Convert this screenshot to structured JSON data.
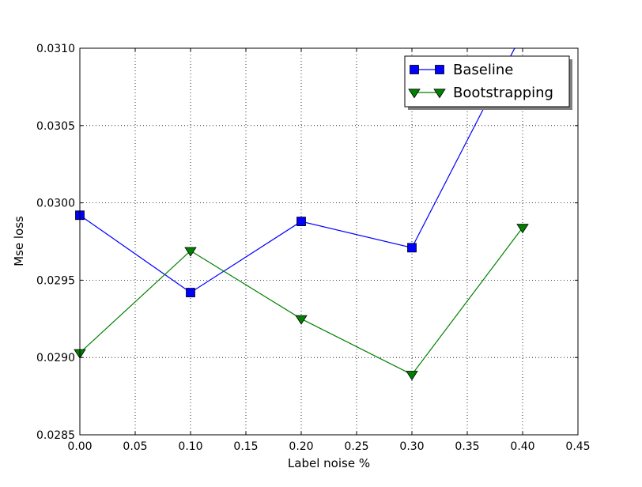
{
  "chart_data": {
    "type": "line",
    "title": "",
    "xlabel": "Label noise %",
    "ylabel": "Mse loss",
    "xlim": [
      0.0,
      0.45
    ],
    "ylim": [
      0.0285,
      0.031
    ],
    "x_ticks": [
      0.0,
      0.05,
      0.1,
      0.15,
      0.2,
      0.25,
      0.3,
      0.35,
      0.4,
      0.45
    ],
    "x_tick_labels": [
      "0.00",
      "0.05",
      "0.10",
      "0.15",
      "0.20",
      "0.25",
      "0.30",
      "0.35",
      "0.40",
      "0.45"
    ],
    "y_ticks": [
      0.0285,
      0.029,
      0.0295,
      0.03,
      0.0305,
      0.031
    ],
    "y_tick_labels": [
      "0.0285",
      "0.0290",
      "0.0295",
      "0.0300",
      "0.0305",
      "0.0310"
    ],
    "grid": true,
    "legend_position": "top-right",
    "x": [
      0.0,
      0.1,
      0.2,
      0.3,
      0.4
    ],
    "series": [
      {
        "name": "Baseline",
        "color": "#0000ff",
        "marker": "square",
        "values": [
          0.02992,
          0.02942,
          0.02988,
          0.02971,
          0.0311
        ]
      },
      {
        "name": "Bootstrapping",
        "color": "#008000",
        "marker": "triangle-down",
        "values": [
          0.02903,
          0.02969,
          0.02925,
          0.02889,
          0.02984
        ]
      }
    ]
  }
}
